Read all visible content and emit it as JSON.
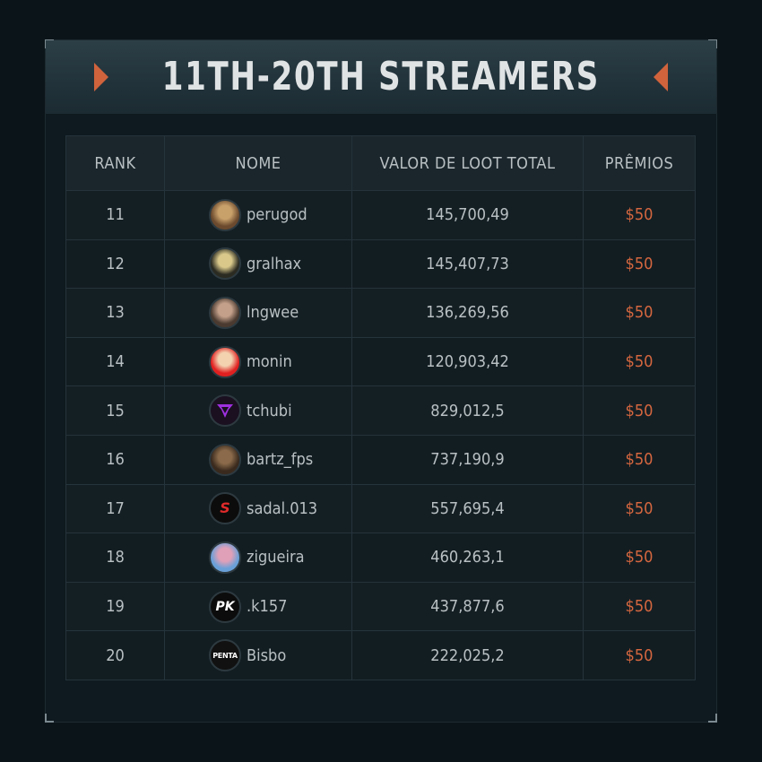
{
  "title": "11TH-20TH STREAMERS",
  "columns": {
    "rank": "RANK",
    "name": "NOME",
    "loot": "VALOR DE LOOT TOTAL",
    "prize": "PRÊMIOS"
  },
  "rows": [
    {
      "rank": "11",
      "name": "perugod",
      "loot": "145,700,49",
      "prize": "$50",
      "avatar_icon": "soldier-avatar-icon",
      "avatar_colors": [
        "#6b4a2e",
        "#c8a06a"
      ]
    },
    {
      "rank": "12",
      "name": "gralhax",
      "loot": "145,407,73",
      "prize": "$50",
      "avatar_icon": "bird-avatar-icon",
      "avatar_colors": [
        "#2b2b22",
        "#d9c88a"
      ]
    },
    {
      "rank": "13",
      "name": "lngwee",
      "loot": "136,269,56",
      "prize": "$50",
      "avatar_icon": "bearded-man-avatar-icon",
      "avatar_colors": [
        "#4a3a30",
        "#c4a08a"
      ]
    },
    {
      "rank": "14",
      "name": "monin",
      "loot": "120,903,42",
      "prize": "$50",
      "avatar_icon": "cartoon-face-avatar-icon",
      "avatar_colors": [
        "#e02020",
        "#f3d2b0"
      ]
    },
    {
      "rank": "15",
      "name": "tchubi",
      "loot": "829,012,5",
      "prize": "$50",
      "avatar_icon": "purple-logo-avatar-icon",
      "avatar_colors": [
        "#1a1020",
        "#a030e0"
      ]
    },
    {
      "rank": "16",
      "name": "bartz_fps",
      "loot": "737,190,9",
      "prize": "$50",
      "avatar_icon": "photo-avatar-icon",
      "avatar_colors": [
        "#3a2a1e",
        "#8a6a4a"
      ]
    },
    {
      "rank": "17",
      "name": "sadal.013",
      "loot": "557,695,4",
      "prize": "$50",
      "avatar_icon": "red-s-logo-avatar-icon",
      "avatar_colors": [
        "#0c0c0c",
        "#e02a2a"
      ]
    },
    {
      "rank": "18",
      "name": "zigueira",
      "loot": "460,263,1",
      "prize": "$50",
      "avatar_icon": "man-portrait-avatar-icon",
      "avatar_colors": [
        "#6aa0d8",
        "#e0a0b8"
      ]
    },
    {
      "rank": "19",
      "name": ".k157",
      "loot": "437,877,6",
      "prize": "$50",
      "avatar_icon": "pk-logo-avatar-icon",
      "avatar_colors": [
        "#0c0c0c",
        "#ffffff"
      ]
    },
    {
      "rank": "20",
      "name": "Bisbo",
      "loot": "222,025,2",
      "prize": "$50",
      "avatar_icon": "penta-logo-avatar-icon",
      "avatar_colors": [
        "#111111",
        "#c82020"
      ]
    }
  ]
}
